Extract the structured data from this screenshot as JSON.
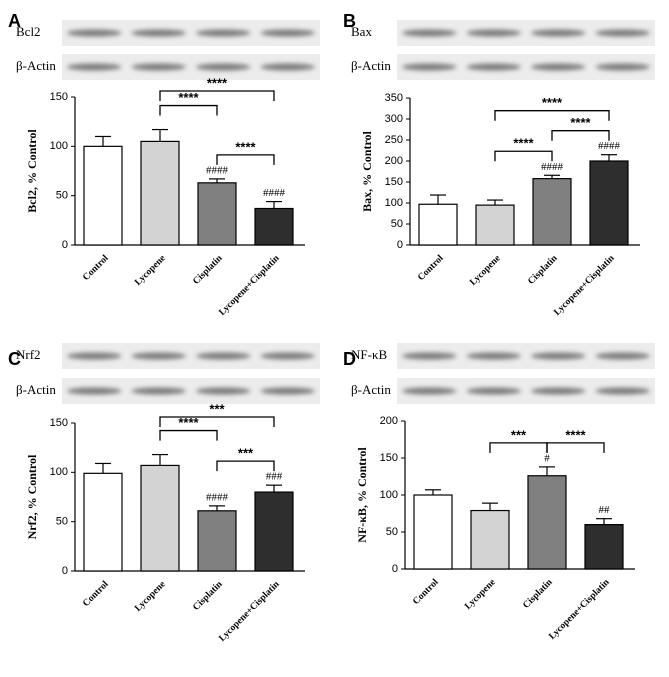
{
  "chart_data": [
    {
      "type": "bar",
      "panel": "A",
      "blots": [
        "Bcl2",
        "β-Actin"
      ],
      "ylabel": "Bcl2, % Control",
      "categories": [
        "Control",
        "Lycopene",
        "Cisplatin",
        "Lycopene+Cisplatin"
      ],
      "values": [
        100,
        105,
        63,
        37
      ],
      "errors": [
        10,
        12,
        4,
        7
      ],
      "colors": [
        "#ffffff",
        "#d3d3d3",
        "#808080",
        "#2e2e2e"
      ],
      "annotations": [
        null,
        null,
        "####",
        "####"
      ],
      "brackets": [
        {
          "pair": [
            1,
            3
          ],
          "label": "****"
        },
        {
          "pair": [
            1,
            2
          ],
          "label": "****"
        },
        {
          "pair": [
            2,
            3
          ],
          "label": "****"
        }
      ],
      "ylim": [
        0,
        150
      ],
      "yticks": [
        0,
        50,
        100,
        150
      ]
    },
    {
      "type": "bar",
      "panel": "B",
      "blots": [
        "Bax",
        "β-Actin"
      ],
      "ylabel": "Bax, % Control",
      "categories": [
        "Control",
        "Lycopene",
        "Cisplatin",
        "Lycopene+Cisplatin"
      ],
      "values": [
        97,
        95,
        158,
        200
      ],
      "errors": [
        22,
        12,
        8,
        15
      ],
      "colors": [
        "#ffffff",
        "#d3d3d3",
        "#808080",
        "#2e2e2e"
      ],
      "annotations": [
        null,
        null,
        "####",
        "####"
      ],
      "brackets": [
        {
          "pair": [
            1,
            3
          ],
          "label": "****"
        },
        {
          "pair": [
            1,
            2
          ],
          "label": "****"
        },
        {
          "pair": [
            2,
            3
          ],
          "label": "****"
        }
      ],
      "ylim": [
        0,
        350
      ],
      "yticks": [
        0,
        50,
        100,
        150,
        200,
        250,
        300,
        350
      ]
    },
    {
      "type": "bar",
      "panel": "C",
      "blots": [
        "Nrf2",
        "β-Actin"
      ],
      "ylabel": "Nrf2, % Control",
      "categories": [
        "Control",
        "Lycopene",
        "Cisplatin",
        "Lycopene+Cisplatin"
      ],
      "values": [
        99,
        107,
        61,
        80
      ],
      "errors": [
        10,
        11,
        5,
        7
      ],
      "colors": [
        "#ffffff",
        "#d3d3d3",
        "#808080",
        "#2e2e2e"
      ],
      "annotations": [
        null,
        null,
        "####",
        "###"
      ],
      "brackets": [
        {
          "pair": [
            1,
            3
          ],
          "label": "***"
        },
        {
          "pair": [
            1,
            2
          ],
          "label": "****"
        },
        {
          "pair": [
            2,
            3
          ],
          "label": "***"
        }
      ],
      "ylim": [
        0,
        150
      ],
      "yticks": [
        0,
        50,
        100,
        150
      ]
    },
    {
      "type": "bar",
      "panel": "D",
      "blots": [
        "NF-κB",
        "β-Actin"
      ],
      "ylabel": "NF-κB, % Control",
      "categories": [
        "Control",
        "Lycopene",
        "Cisplatin",
        "Lycopene+Cisplatin"
      ],
      "values": [
        100,
        79,
        126,
        60
      ],
      "errors": [
        7,
        10,
        12,
        8
      ],
      "colors": [
        "#ffffff",
        "#d3d3d3",
        "#808080",
        "#2e2e2e"
      ],
      "annotations": [
        null,
        null,
        "#",
        "##"
      ],
      "brackets": [
        {
          "pair": [
            1,
            2
          ],
          "label": "***"
        },
        {
          "pair": [
            2,
            3
          ],
          "label": "****"
        }
      ],
      "ylim": [
        0,
        200
      ],
      "yticks": [
        0,
        50,
        100,
        150,
        200
      ]
    }
  ]
}
